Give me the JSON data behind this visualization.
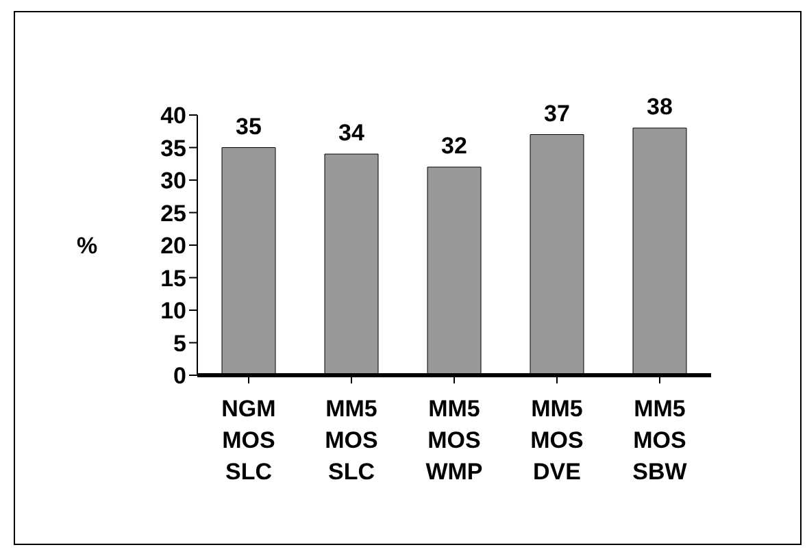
{
  "chart_data": {
    "type": "bar",
    "ylabel": "%",
    "categories": [
      "NGM MOS SLC",
      "MM5 MOS SLC",
      "MM5 MOS WMP",
      "MM5 MOS DVE",
      "MM5 MOS SBW"
    ],
    "values": [
      35,
      34,
      32,
      37,
      38
    ],
    "color": "#999999",
    "ylim": [
      0,
      40
    ],
    "yticks": [
      0,
      5,
      10,
      15,
      20,
      25,
      30,
      35,
      40
    ],
    "grid": false,
    "data_labels": true
  }
}
